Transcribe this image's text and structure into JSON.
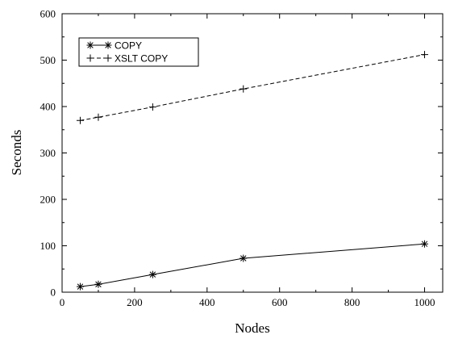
{
  "chart_data": {
    "type": "line",
    "title": "",
    "xlabel": "Nodes",
    "ylabel": "Seconds",
    "xlim": [
      0,
      1050
    ],
    "ylim": [
      0,
      600
    ],
    "xticks": [
      0,
      200,
      400,
      600,
      800,
      1000
    ],
    "yticks": [
      0,
      100,
      200,
      300,
      400,
      500,
      600
    ],
    "grid": false,
    "legend_position": "top-left",
    "series": [
      {
        "name": "COPY",
        "marker": "asterisk",
        "line_style": "solid",
        "x": [
          50,
          100,
          250,
          500,
          1000
        ],
        "y": [
          12,
          17,
          38,
          73,
          104
        ]
      },
      {
        "name": "XSLT COPY",
        "marker": "plus",
        "line_style": "dashed",
        "x": [
          50,
          100,
          250,
          500,
          1000
        ],
        "y": [
          370,
          377,
          399,
          438,
          512
        ]
      }
    ]
  }
}
